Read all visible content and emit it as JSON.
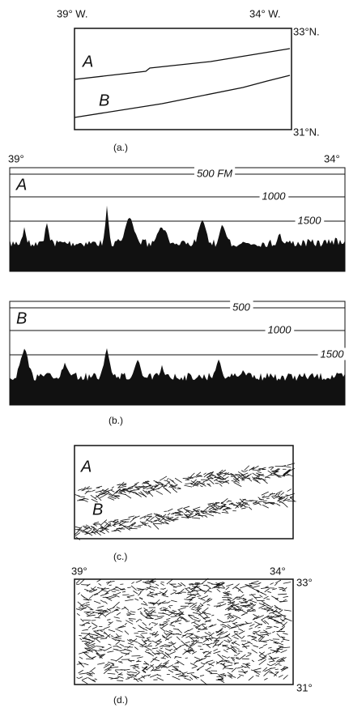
{
  "panel_a": {
    "lon_left": "39° W.",
    "lon_right": "34° W.",
    "lat_top": "33°N.",
    "lat_bottom": "31°N.",
    "track_a": "A",
    "track_b": "B",
    "caption": "(a.)"
  },
  "panel_b": {
    "lon_left": "39°",
    "lon_right": "34°",
    "profile_a": {
      "label": "A",
      "depth_1": "500 FM",
      "depth_2": "1000",
      "depth_3": "1500"
    },
    "profile_b": {
      "label": "B",
      "depth_1": "500",
      "depth_2": "1000",
      "depth_3": "1500"
    },
    "caption": "(b.)"
  },
  "panel_c": {
    "track_a": "A",
    "track_b": "B",
    "caption": "(c.)"
  },
  "panel_d": {
    "lon_left": "39°",
    "lon_right": "34°",
    "lat_top": "33°",
    "lat_bottom": "31°",
    "caption": "(d.)"
  }
}
